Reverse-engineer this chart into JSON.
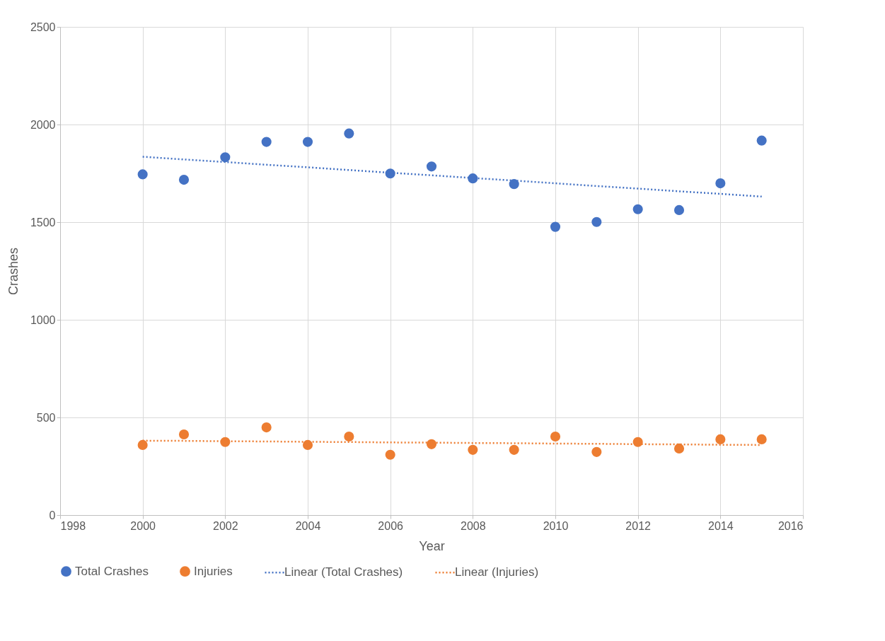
{
  "chart_data": {
    "type": "scatter",
    "xlabel": "Year",
    "ylabel": "Crashes",
    "x": [
      2000,
      2001,
      2002,
      2003,
      2004,
      2005,
      2006,
      2007,
      2008,
      2009,
      2010,
      2011,
      2012,
      2013,
      2014,
      2015
    ],
    "series": [
      {
        "name": "Total Crashes",
        "color": "#4472c4",
        "values": [
          1745,
          1717,
          1832,
          1911,
          1911,
          1954,
          1749,
          1785,
          1724,
          1695,
          1476,
          1501,
          1566,
          1562,
          1699,
          1918
        ]
      },
      {
        "name": "Injuries",
        "color": "#ed7d31",
        "values": [
          359,
          413,
          374,
          449,
          359,
          402,
          309,
          363,
          334,
          334,
          402,
          323,
          374,
          341,
          388,
          388
        ]
      },
      {
        "name": "Linear (Total Crashes)",
        "color": "#4472c4",
        "type": "line",
        "marker": "none",
        "line_style": "dotted",
        "values": [
          1835,
          1821,
          1808,
          1794,
          1781,
          1767,
          1753,
          1740,
          1726,
          1713,
          1699,
          1685,
          1672,
          1658,
          1645,
          1631
        ]
      },
      {
        "name": "Linear (Injuries)",
        "color": "#ed7d31",
        "type": "line",
        "marker": "none",
        "line_style": "dotted",
        "values": [
          381,
          380,
          378,
          377,
          375,
          374,
          372,
          371,
          369,
          368,
          366,
          365,
          363,
          362,
          360,
          359
        ]
      }
    ],
    "xlim": [
      1998,
      2016
    ],
    "xticks": [
      1998,
      2000,
      2002,
      2004,
      2006,
      2008,
      2010,
      2012,
      2014,
      2016
    ],
    "ylim": [
      0,
      2500
    ],
    "yticks": [
      0,
      500,
      1000,
      1500,
      2000,
      2500
    ],
    "grid": true,
    "legend": "bottom",
    "marker": "circle"
  }
}
